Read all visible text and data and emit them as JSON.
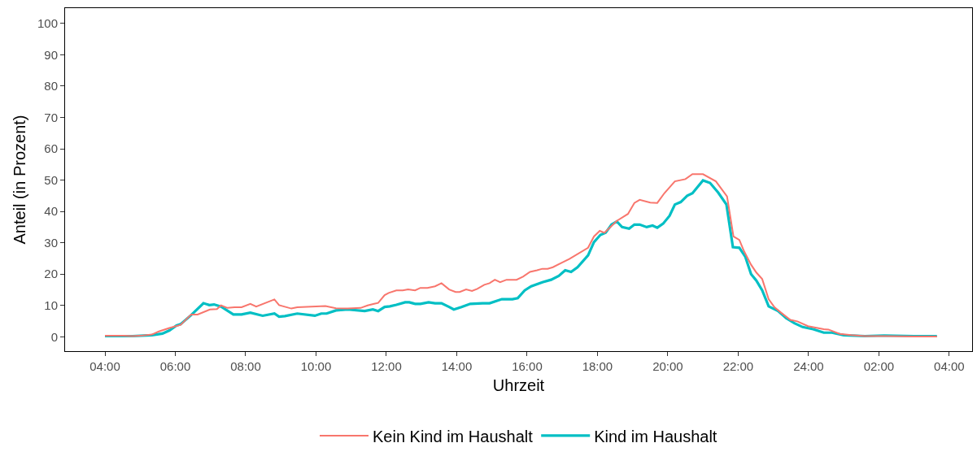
{
  "chart_data": {
    "type": "line",
    "xlabel": "Uhrzeit",
    "ylabel": "Anteil (in Prozent)",
    "series": [
      {
        "name": "Kein Kind im Haushalt",
        "color": "#f8766d",
        "x": [
          "--01-01T04:00",
          "--01-01T04:30",
          "--01-01T04:47",
          "--01-01T05:00",
          "--01-01T05:20",
          "--01-01T05:32",
          "--01-01T05:50",
          "--01-01T06:09",
          "--01-01T06:27",
          "--01-01T06:38",
          "--01-01T06:59",
          "--01-01T07:11",
          "--01-01T07:18",
          "--01-01T07:29",
          "--01-01T07:41",
          "--01-01T07:53",
          "--01-01T08:08",
          "--01-01T08:18",
          "--01-01T08:49",
          "--01-01T08:57",
          "--01-01T09:18",
          "--01-01T09:28",
          "--01-01T10:16",
          "--01-01T10:34",
          "--01-01T10:54",
          "--01-01T11:16",
          "--01-01T11:28",
          "--01-01T11:39",
          "--01-01T11:46",
          "--01-01T11:57",
          "--01-01T12:04",
          "--01-01T12:17",
          "--01-01T12:28",
          "--01-01T12:37",
          "--01-01T12:49",
          "--01-01T12:58",
          "--01-01T13:10",
          "--01-01T13:23",
          "--01-01T13:34",
          "--01-01T13:47",
          "--01-01T13:58",
          "--01-01T14:05",
          "--01-01T14:16",
          "--01-01T14:26",
          "--01-01T14:35",
          "--01-01T14:47",
          "--01-01T14:56",
          "--01-01T15:05",
          "--01-01T15:14",
          "--01-01T15:25",
          "--01-01T15:42",
          "--01-01T15:53",
          "--01-01T16:05",
          "--01-01T16:17",
          "--01-01T16:26",
          "--01-01T16:35",
          "--01-01T16:44",
          "--01-01T16:58",
          "--01-01T17:12",
          "--01-01T17:44",
          "--01-01T17:54",
          "--01-01T18:04",
          "--01-01T18:12",
          "--01-01T18:33",
          "--01-01T18:52",
          "--01-01T19:03",
          "--01-01T19:12",
          "--01-01T19:30",
          "--01-01T19:42",
          "--01-01T19:54",
          "--01-01T20:12",
          "--01-01T20:30",
          "--01-01T20:42",
          "--01-01T21:00",
          "--01-01T21:22",
          "--01-01T21:41",
          "--01-01T21:52",
          "--01-01T22:02",
          "--01-01T22:10",
          "--01-01T22:22",
          "--01-01T22:31",
          "--01-01T22:41",
          "--01-01T22:52",
          "--01-01T23:02",
          "--01-01T23:13",
          "--01-01T23:29",
          "--01-01T23:41",
          "--01-01T23:59",
          "--01-02T00:26",
          "--01-02T00:34",
          "--01-02T00:53",
          "--01-02T01:13",
          "--01-02T01:36",
          "--01-02T02:12",
          "--01-02T03:00",
          "--01-02T03:39"
        ],
        "values": [
          0.3,
          0.3,
          0.2,
          0.3,
          0.7,
          1.7,
          2.8,
          3.8,
          7.1,
          7.1,
          8.7,
          8.8,
          10,
          9.2,
          9.4,
          9.4,
          10.5,
          9.6,
          11.9,
          10.1,
          9,
          9.4,
          9.8,
          9.1,
          9,
          9.2,
          10,
          10.5,
          10.8,
          13.3,
          14,
          14.8,
          14.8,
          15.1,
          14.8,
          15.6,
          15.6,
          16.1,
          17.1,
          15.1,
          14.3,
          14.3,
          15.1,
          14.6,
          15.3,
          16.6,
          17.1,
          18.2,
          17.4,
          18.2,
          18.2,
          19.2,
          20.7,
          21.2,
          21.7,
          21.7,
          22.2,
          23.5,
          24.8,
          28.4,
          32,
          33.8,
          33.2,
          37,
          39.2,
          42.7,
          43.7,
          42.8,
          42.7,
          45.8,
          49.6,
          50.3,
          51.9,
          51.9,
          49.6,
          44.8,
          32,
          30.9,
          27.3,
          23,
          20.5,
          18.4,
          12,
          9.4,
          7.7,
          5.4,
          4.9,
          3.4,
          2.4,
          2.3,
          0.9,
          0.5,
          0.2,
          0.2,
          0.1,
          0.1
        ]
      },
      {
        "name": "Kind im Haushalt",
        "color": "#00bfc4",
        "x": [
          "--01-01T04:00",
          "--01-01T04:47",
          "--01-01T05:20",
          "--01-01T05:38",
          "--01-01T05:50",
          "--01-01T06:02",
          "--01-01T06:09",
          "--01-01T06:27",
          "--01-01T06:48",
          "--01-01T06:58",
          "--01-01T07:06",
          "--01-01T07:18",
          "--01-01T07:39",
          "--01-01T07:53",
          "--01-01T08:08",
          "--01-01T08:29",
          "--01-01T08:49",
          "--01-01T08:57",
          "--01-01T09:07",
          "--01-01T09:28",
          "--01-01T09:58",
          "--01-01T10:09",
          "--01-01T10:18",
          "--01-01T10:34",
          "--01-01T10:54",
          "--01-01T11:23",
          "--01-01T11:37",
          "--01-01T11:46",
          "--01-01T11:57",
          "--01-01T12:06",
          "--01-01T12:17",
          "--01-01T12:32",
          "--01-01T12:39",
          "--01-01T12:49",
          "--01-01T12:58",
          "--01-01T13:12",
          "--01-01T13:23",
          "--01-01T13:34",
          "--01-01T13:47",
          "--01-01T13:55",
          "--01-01T14:08",
          "--01-01T14:23",
          "--01-01T14:44",
          "--01-01T14:56",
          "--01-01T15:17",
          "--01-01T15:35",
          "--01-01T15:44",
          "--01-01T15:56",
          "--01-01T16:07",
          "--01-01T16:26",
          "--01-01T16:41",
          "--01-01T16:54",
          "--01-01T17:05",
          "--01-01T17:15",
          "--01-01T17:26",
          "--01-01T17:44",
          "--01-01T17:54",
          "--01-01T18:05",
          "--01-01T18:14",
          "--01-01T18:24",
          "--01-01T18:33",
          "--01-01T18:42",
          "--01-01T18:54",
          "--01-01T19:03",
          "--01-01T19:12",
          "--01-01T19:24",
          "--01-01T19:34",
          "--01-01T19:42",
          "--01-01T19:52",
          "--01-01T20:03",
          "--01-01T20:12",
          "--01-01T20:22",
          "--01-01T20:33",
          "--01-01T20:42",
          "--01-01T21:00",
          "--01-01T21:12",
          "--01-01T21:26",
          "--01-01T21:40",
          "--01-01T21:51",
          "--01-01T22:02",
          "--01-01T22:12",
          "--01-01T22:22",
          "--01-01T22:31",
          "--01-01T22:41",
          "--01-01T22:52",
          "--01-01T23:08",
          "--01-01T23:22",
          "--01-01T23:36",
          "--01-01T23:50",
          "--01-02T00:08",
          "--01-02T00:26",
          "--01-02T00:40",
          "--01-02T01:00",
          "--01-02T01:36",
          "--01-02T02:09",
          "--01-02T03:00",
          "--01-02T03:39"
        ],
        "values": [
          0.2,
          0.2,
          0.5,
          1,
          2,
          3.6,
          4,
          6.9,
          10.7,
          10.1,
          10.3,
          9.6,
          7.1,
          7.1,
          7.7,
          6.7,
          7.4,
          6.4,
          6.6,
          7.4,
          6.7,
          7.4,
          7.4,
          8.4,
          8.7,
          8.2,
          8.7,
          8.2,
          9.5,
          9.7,
          10.2,
          11,
          11,
          10.5,
          10.5,
          11,
          10.7,
          10.7,
          9.5,
          8.7,
          9.5,
          10.5,
          10.7,
          10.7,
          12,
          12,
          12.3,
          14.8,
          16.1,
          17.4,
          18.2,
          19.4,
          21.2,
          20.7,
          22.2,
          26,
          30.2,
          32.5,
          33.2,
          35.8,
          36.8,
          35,
          34.5,
          35.8,
          35.8,
          35,
          35.5,
          34.8,
          36.1,
          38.6,
          42.2,
          43,
          45,
          45.8,
          49.9,
          49.1,
          46,
          42.2,
          28.6,
          28.4,
          25.6,
          20,
          17.9,
          14.8,
          9.7,
          8.2,
          5.9,
          4.3,
          3.1,
          2.4,
          1.3,
          1.3,
          0.5,
          0.2,
          0.4,
          0.2,
          0.2
        ]
      }
    ],
    "xlim": [
      "--01-01T02:52",
      "--01-02T04:39"
    ],
    "xticks": [
      {
        "value": "--01-01T04:00",
        "label": "04:00"
      },
      {
        "value": "--01-01T06:00",
        "label": "06:00"
      },
      {
        "value": "--01-01T08:00",
        "label": "08:00"
      },
      {
        "value": "--01-01T10:00",
        "label": "10:00"
      },
      {
        "value": "--01-01T12:00",
        "label": "12:00"
      },
      {
        "value": "--01-01T14:00",
        "label": "14:00"
      },
      {
        "value": "--01-01T16:00",
        "label": "16:00"
      },
      {
        "value": "--01-01T18:00",
        "label": "18:00"
      },
      {
        "value": "--01-01T20:00",
        "label": "20:00"
      },
      {
        "value": "--01-01T22:00",
        "label": "22:00"
      },
      {
        "value": "--01-02T00:00",
        "label": "24:00"
      },
      {
        "value": "--01-02T02:00",
        "label": "02:00"
      },
      {
        "value": "--01-02T04:00",
        "label": "04:00"
      }
    ],
    "ylim": [
      -4.6,
      104.9
    ],
    "yticks": [
      0,
      10,
      20,
      30,
      40,
      50,
      60,
      70,
      80,
      90,
      100
    ],
    "legend": "bottom",
    "marker": "none",
    "line_style": "solid"
  }
}
